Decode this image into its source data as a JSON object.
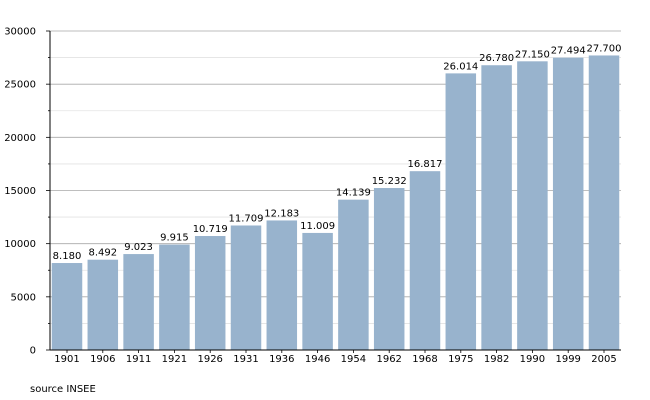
{
  "chart_data": {
    "type": "bar",
    "categories": [
      "1901",
      "1906",
      "1911",
      "1921",
      "1926",
      "1931",
      "1936",
      "1946",
      "1954",
      "1962",
      "1968",
      "1975",
      "1982",
      "1990",
      "1999",
      "2005"
    ],
    "values": [
      8180,
      8492,
      9023,
      9915,
      10719,
      11709,
      12183,
      11009,
      14139,
      15232,
      16817,
      26014,
      26780,
      27150,
      27494,
      27700
    ],
    "data_labels": [
      "8.180",
      "8.492",
      "9.023",
      "9.915",
      "10.719",
      "11.709",
      "12.183",
      "11.009",
      "14.139",
      "15.232",
      "16.817",
      "26.014",
      "26.780",
      "27.150",
      "27.494",
      "27.700"
    ],
    "y_ticks": [
      0,
      5000,
      10000,
      15000,
      20000,
      25000,
      30000
    ],
    "y_tick_labels": [
      "0",
      "5000",
      "10000",
      "15000",
      "20000",
      "25000",
      "30000"
    ],
    "ylim": [
      0,
      30000
    ],
    "grid": true,
    "legend": "none",
    "title": "",
    "xlabel": "",
    "ylabel": ""
  },
  "source_text": "source INSEE",
  "colors": {
    "bar": "#98b3cd",
    "grid_major": "#a9a9a9",
    "grid_minor": "#e3e3e3",
    "axis": "#000000"
  }
}
